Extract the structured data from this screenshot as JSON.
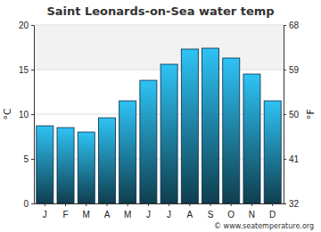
{
  "chart_data": {
    "type": "bar",
    "title": "Saint Leonards-on-Sea water temp",
    "categories": [
      "J",
      "F",
      "M",
      "A",
      "M",
      "J",
      "J",
      "A",
      "S",
      "O",
      "N",
      "D"
    ],
    "values": [
      8.7,
      8.5,
      8.0,
      9.6,
      11.5,
      13.8,
      15.6,
      17.3,
      17.4,
      16.3,
      14.5,
      11.5
    ],
    "color": "#2ec3f5",
    "ylabel": "°C",
    "y2label": "°F",
    "ylim": [
      0,
      20
    ],
    "yticks": [
      0,
      5,
      10,
      15,
      20
    ],
    "y2lim": [
      32,
      68
    ],
    "y2ticks": [
      32,
      41,
      50,
      59,
      68
    ],
    "grid": true,
    "annotations": [
      "© www.seatemperature.org"
    ]
  }
}
